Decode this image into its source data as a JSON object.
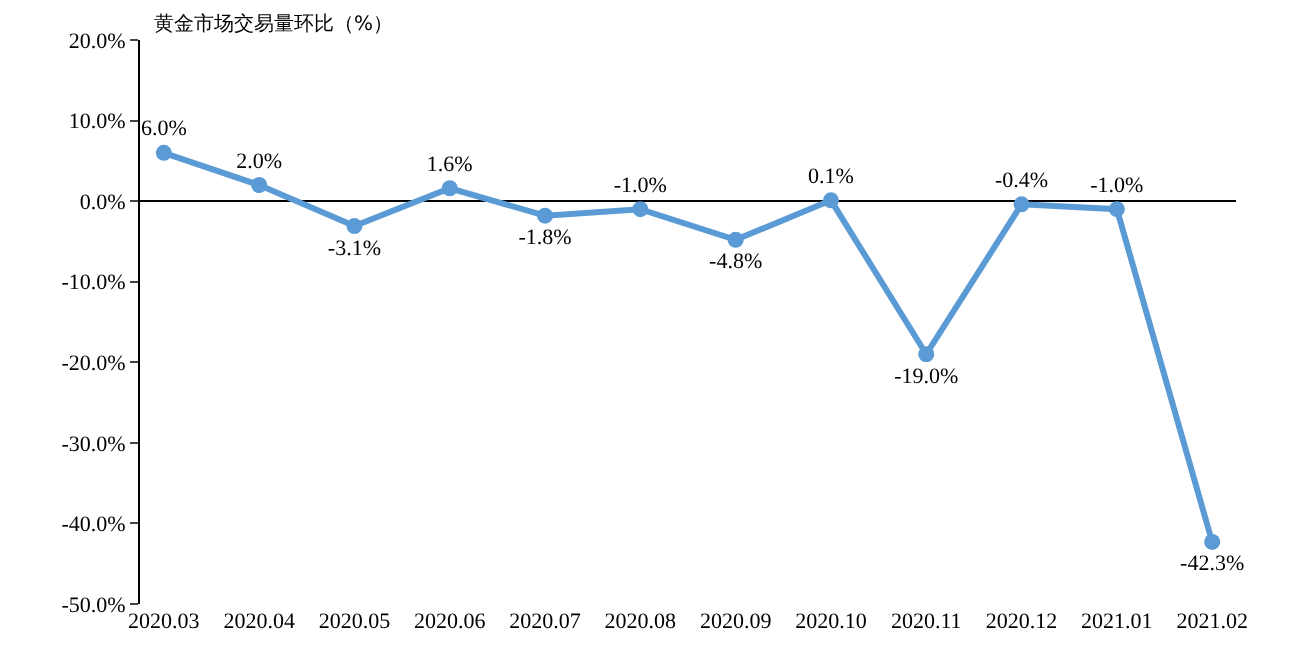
{
  "chart_data": {
    "type": "line",
    "title": "黄金市场交易量环比（%）",
    "categories": [
      "2020.03",
      "2020.04",
      "2020.05",
      "2020.06",
      "2020.07",
      "2020.08",
      "2020.09",
      "2020.10",
      "2020.11",
      "2020.12",
      "2021.01",
      "2021.02"
    ],
    "series": [
      {
        "color": "#5b9bd5",
        "values": [
          6.0,
          2.0,
          -3.1,
          1.6,
          -1.8,
          -1.0,
          -4.8,
          0.1,
          -19.0,
          -0.4,
          -1.0,
          -42.3
        ],
        "value_labels": [
          "6.0%",
          "2.0%",
          "-3.1%",
          "1.6%",
          "-1.8%",
          "-1.0%",
          "-4.8%",
          "0.1%",
          "-19.0%",
          "-0.4%",
          "-1.0%",
          "-42.3%"
        ]
      }
    ],
    "ylim": [
      -50,
      20
    ],
    "yticks": [
      {
        "value": 20,
        "label": "20.0%"
      },
      {
        "value": 10,
        "label": "10.0%"
      },
      {
        "value": 0,
        "label": "0.0%"
      },
      {
        "value": -10,
        "label": "-10.0%"
      },
      {
        "value": -20,
        "label": "-20.0%"
      },
      {
        "value": -30,
        "label": "-30.0%"
      },
      {
        "value": -40,
        "label": "-40.0%"
      },
      {
        "value": -50,
        "label": "-50.0%"
      }
    ],
    "marker": "circle",
    "line_style": "solid"
  }
}
